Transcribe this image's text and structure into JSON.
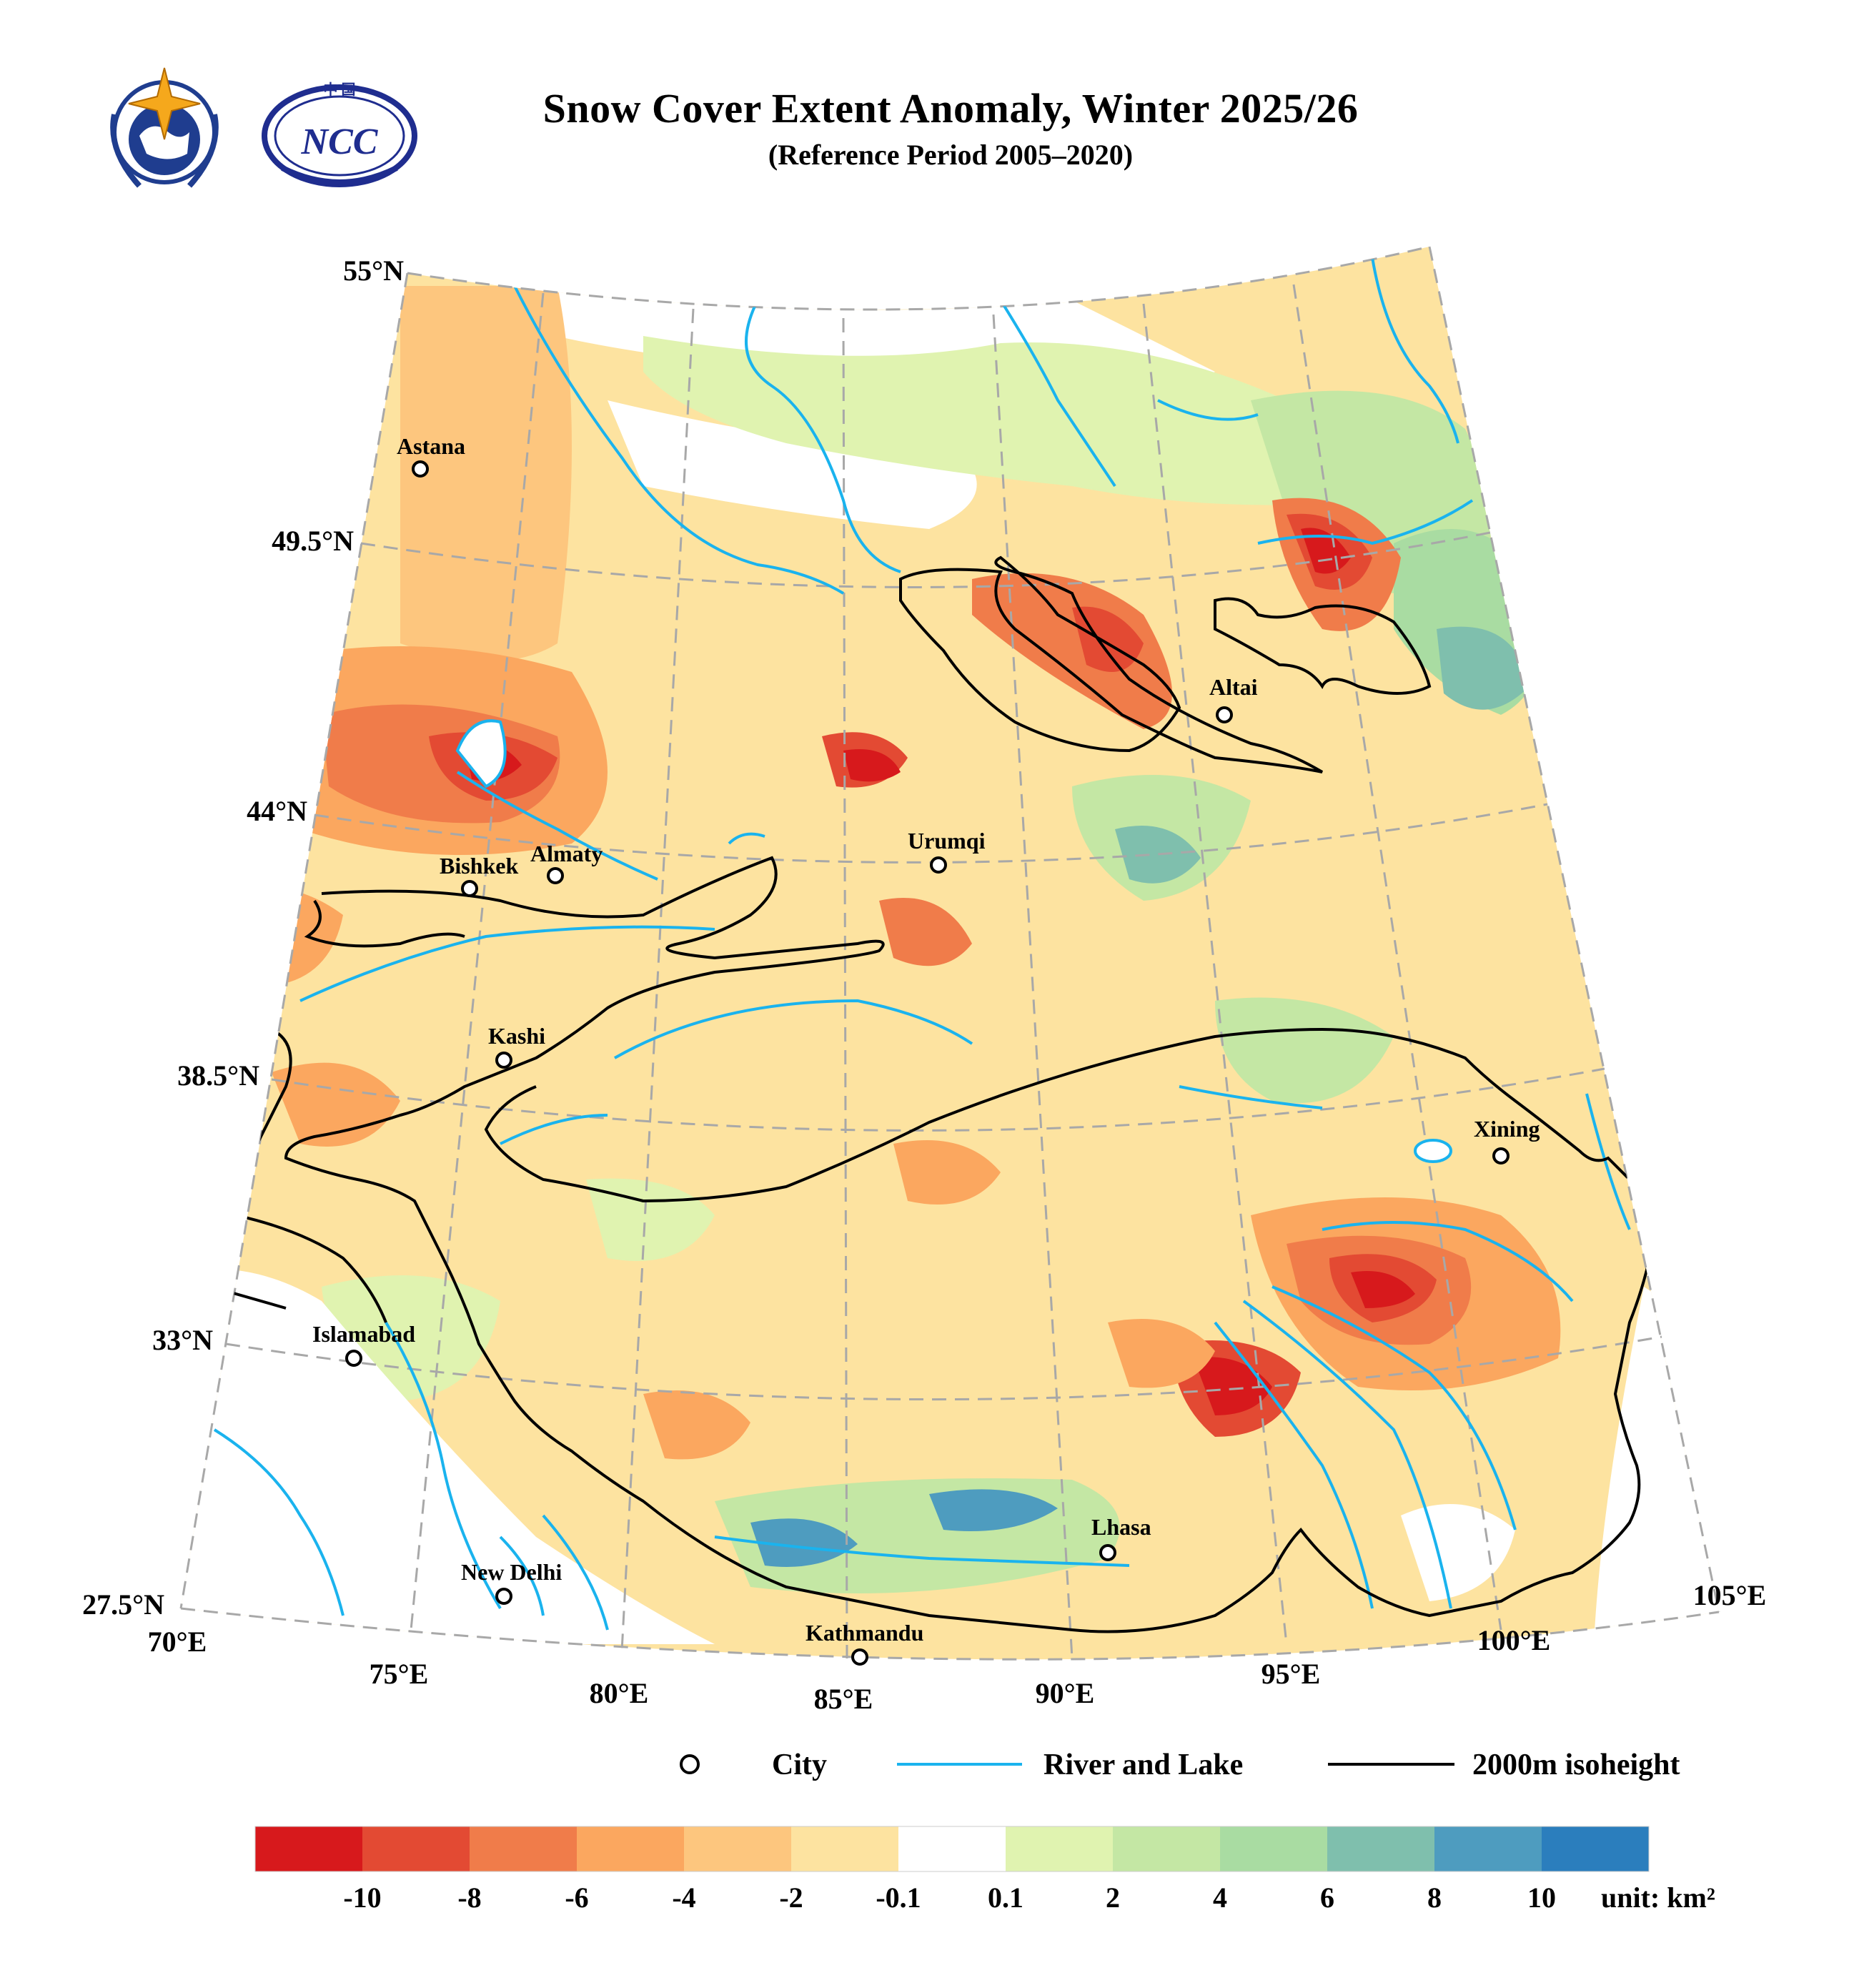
{
  "title": "Snow Cover Extent Anomaly, Winter 2025/26",
  "subtitle": "(Reference Period 2005–2020)",
  "logos": [
    {
      "name": "wmo-logo",
      "icon": "wmo-emblem"
    },
    {
      "name": "ncc-logo",
      "icon": "ncc-emblem",
      "text": "NCC",
      "text_top": "中 国"
    }
  ],
  "map": {
    "lat_labels": [
      "55°N",
      "49.5°N",
      "44°N",
      "38.5°N",
      "33°N",
      "27.5°N"
    ],
    "lon_labels": [
      "70°E",
      "75°E",
      "80°E",
      "85°E",
      "90°E",
      "95°E",
      "100°E",
      "105°E"
    ],
    "cities": [
      {
        "name": "Astana"
      },
      {
        "name": "Almaty"
      },
      {
        "name": "Bishkek"
      },
      {
        "name": "Urumqi"
      },
      {
        "name": "Altai"
      },
      {
        "name": "Kashi"
      },
      {
        "name": "Xining"
      },
      {
        "name": "Islamabad"
      },
      {
        "name": "Lhasa"
      },
      {
        "name": "New Delhi"
      },
      {
        "name": "Kathmandu"
      }
    ],
    "colors": {
      "river": "#1ab3ee",
      "isoheight": "#000000",
      "grid": "#a8a8a8"
    }
  },
  "legend": {
    "items": [
      {
        "label": "City",
        "icon": "circle-marker"
      },
      {
        "label": "River and Lake",
        "icon": "blue-line"
      },
      {
        "label": "2000m isoheight",
        "icon": "black-line"
      }
    ]
  },
  "colorbar": {
    "colors": [
      "#d7191c",
      "#e34a33",
      "#f07c4a",
      "#fba75f",
      "#fdc67e",
      "#fde3a0",
      "#ffffff",
      "#e0f3b0",
      "#c4e7a4",
      "#a9dca2",
      "#7fbfad",
      "#4e9cbf",
      "#2b7ebd"
    ],
    "labels": [
      "-10",
      "-8",
      "-6",
      "-4",
      "-2",
      "-0.1",
      "0.1",
      "2",
      "4",
      "6",
      "8",
      "10"
    ],
    "unit": "unit: km²"
  }
}
